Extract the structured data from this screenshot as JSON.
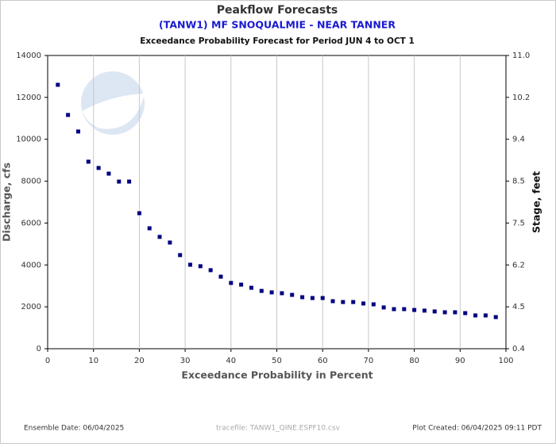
{
  "chart_data": {
    "type": "scatter",
    "title": "Peakflow Forecasts",
    "subtitle": "(TANW1) MF SNOQUALMIE - NEAR TANNER",
    "caption": "Exceedance Probability Forecast for Period JUN 4 to OCT 1",
    "x_label": "Exceedance Probability in Percent",
    "y_label": "Discharge, cfs",
    "y2_label": "Stage, feet",
    "footer_left": "Ensemble Date: 06/04/2025",
    "footer_center": "tracefile: TANW1_QINE.ESPF10.csv",
    "footer_right": "Plot Created: 06/04/2025 09:11 PDT",
    "color": "#000080",
    "grid": true,
    "xlim": [
      0,
      100
    ],
    "xticks": [
      0,
      10,
      20,
      30,
      40,
      50,
      60,
      70,
      80,
      90,
      100
    ],
    "ylim": [
      0,
      14000
    ],
    "yticks": [
      0,
      2000,
      4000,
      6000,
      8000,
      10000,
      12000,
      14000
    ],
    "y2ticks": [
      0.4,
      4.5,
      6.2,
      7.5,
      8.5,
      9.4,
      10.2,
      {
        "value": 11,
        "label": "11.0"
      }
    ],
    "x": [
      2.22,
      4.44,
      6.67,
      8.89,
      11.11,
      13.33,
      15.56,
      17.78,
      20.0,
      22.22,
      24.44,
      26.67,
      28.89,
      31.11,
      33.33,
      35.56,
      37.78,
      40.0,
      42.22,
      44.44,
      46.67,
      48.89,
      51.11,
      53.33,
      55.56,
      57.78,
      60.0,
      62.22,
      64.44,
      66.67,
      68.89,
      71.11,
      73.33,
      75.56,
      77.78,
      80.0,
      82.22,
      84.44,
      86.67,
      88.89,
      91.11,
      93.33,
      95.56,
      97.78
    ],
    "values": [
      12600,
      11160,
      10370,
      8930,
      8630,
      8360,
      7980,
      7980,
      6470,
      5750,
      5340,
      5070,
      4470,
      4010,
      3940,
      3750,
      3440,
      3140,
      3060,
      2910,
      2760,
      2690,
      2650,
      2570,
      2460,
      2420,
      2420,
      2270,
      2230,
      2230,
      2160,
      2120,
      1970,
      1890,
      1890,
      1850,
      1820,
      1780,
      1740,
      1740,
      1700,
      1590,
      1590,
      1510
    ]
  }
}
